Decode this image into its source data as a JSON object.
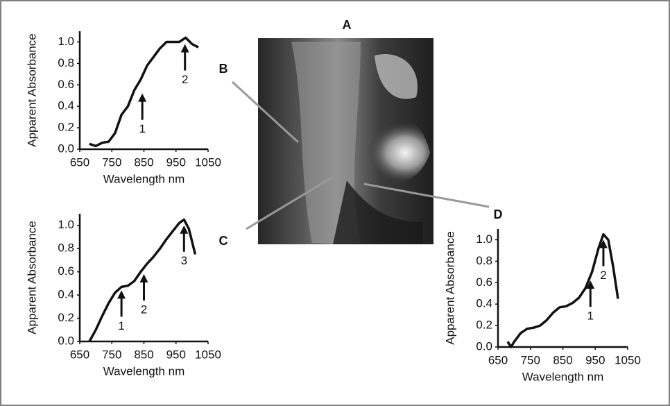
{
  "image_label": "A",
  "chart_data": [
    {
      "type": "line",
      "title": "B",
      "xlabel": "Wavelength nm",
      "ylabel": "Apparent Absorbance",
      "color": "#111111",
      "x": [
        680,
        700,
        720,
        740,
        760,
        780,
        800,
        820,
        840,
        860,
        880,
        900,
        920,
        940,
        960,
        980,
        1000,
        1020
      ],
      "values": [
        0.05,
        0.03,
        0.06,
        0.07,
        0.15,
        0.32,
        0.4,
        0.55,
        0.65,
        0.78,
        0.86,
        0.94,
        1.0,
        1.0,
        1.0,
        1.04,
        0.98,
        0.95
      ],
      "xlim": [
        650,
        1050
      ],
      "xticks": [
        650,
        750,
        850,
        950,
        1050
      ],
      "ylim": [
        0,
        1.1
      ],
      "yticks": [
        {
          "value": 0,
          "label": "0.0"
        },
        0.2,
        0.4,
        0.6,
        0.8,
        {
          "value": 1,
          "label": "1.0"
        }
      ],
      "annotations": [
        {
          "text": "1",
          "x": 845,
          "y": 0.52
        },
        {
          "text": "2",
          "x": 978,
          "y": 0.98
        }
      ]
    },
    {
      "type": "line",
      "title": "C",
      "xlabel": "Wavelength nm",
      "ylabel": "Apparent Absorbance",
      "color": "#111111",
      "x": [
        680,
        700,
        720,
        740,
        760,
        780,
        800,
        820,
        840,
        860,
        880,
        900,
        920,
        940,
        960,
        975,
        990,
        1010
      ],
      "values": [
        0.0,
        0.1,
        0.22,
        0.33,
        0.42,
        0.47,
        0.48,
        0.52,
        0.6,
        0.67,
        0.73,
        0.8,
        0.88,
        0.95,
        1.02,
        1.05,
        0.97,
        0.75
      ],
      "xlim": [
        650,
        1050
      ],
      "xticks": [
        650,
        750,
        850,
        950,
        1050
      ],
      "ylim": [
        0,
        1.1
      ],
      "yticks": [
        {
          "value": 0,
          "label": "0.0"
        },
        0.2,
        0.4,
        0.6,
        0.8,
        {
          "value": 1,
          "label": "1.0"
        }
      ],
      "annotations": [
        {
          "text": "1",
          "x": 780,
          "y": 0.44
        },
        {
          "text": "2",
          "x": 850,
          "y": 0.58
        },
        {
          "text": "3",
          "x": 975,
          "y": 1.0
        }
      ]
    },
    {
      "type": "line",
      "title": "D",
      "xlabel": "Wavelength nm",
      "ylabel": "Apparent Absorbance",
      "color": "#111111",
      "x": [
        680,
        690,
        700,
        720,
        740,
        760,
        780,
        800,
        820,
        840,
        860,
        880,
        900,
        920,
        940,
        960,
        975,
        990,
        1005,
        1020
      ],
      "values": [
        0.05,
        0.0,
        0.05,
        0.13,
        0.17,
        0.18,
        0.2,
        0.25,
        0.32,
        0.37,
        0.38,
        0.41,
        0.46,
        0.55,
        0.7,
        0.92,
        1.05,
        1.0,
        0.75,
        0.45
      ],
      "xlim": [
        650,
        1050
      ],
      "xticks": [
        650,
        750,
        850,
        950,
        1050
      ],
      "ylim": [
        0,
        1.1
      ],
      "yticks": [
        {
          "value": 0,
          "label": "0.0"
        },
        0.2,
        0.4,
        0.6,
        0.8,
        {
          "value": 1,
          "label": "1.0"
        }
      ],
      "annotations": [
        {
          "text": "1",
          "x": 935,
          "y": 0.62
        },
        {
          "text": "2",
          "x": 975,
          "y": 1.0
        }
      ]
    }
  ]
}
